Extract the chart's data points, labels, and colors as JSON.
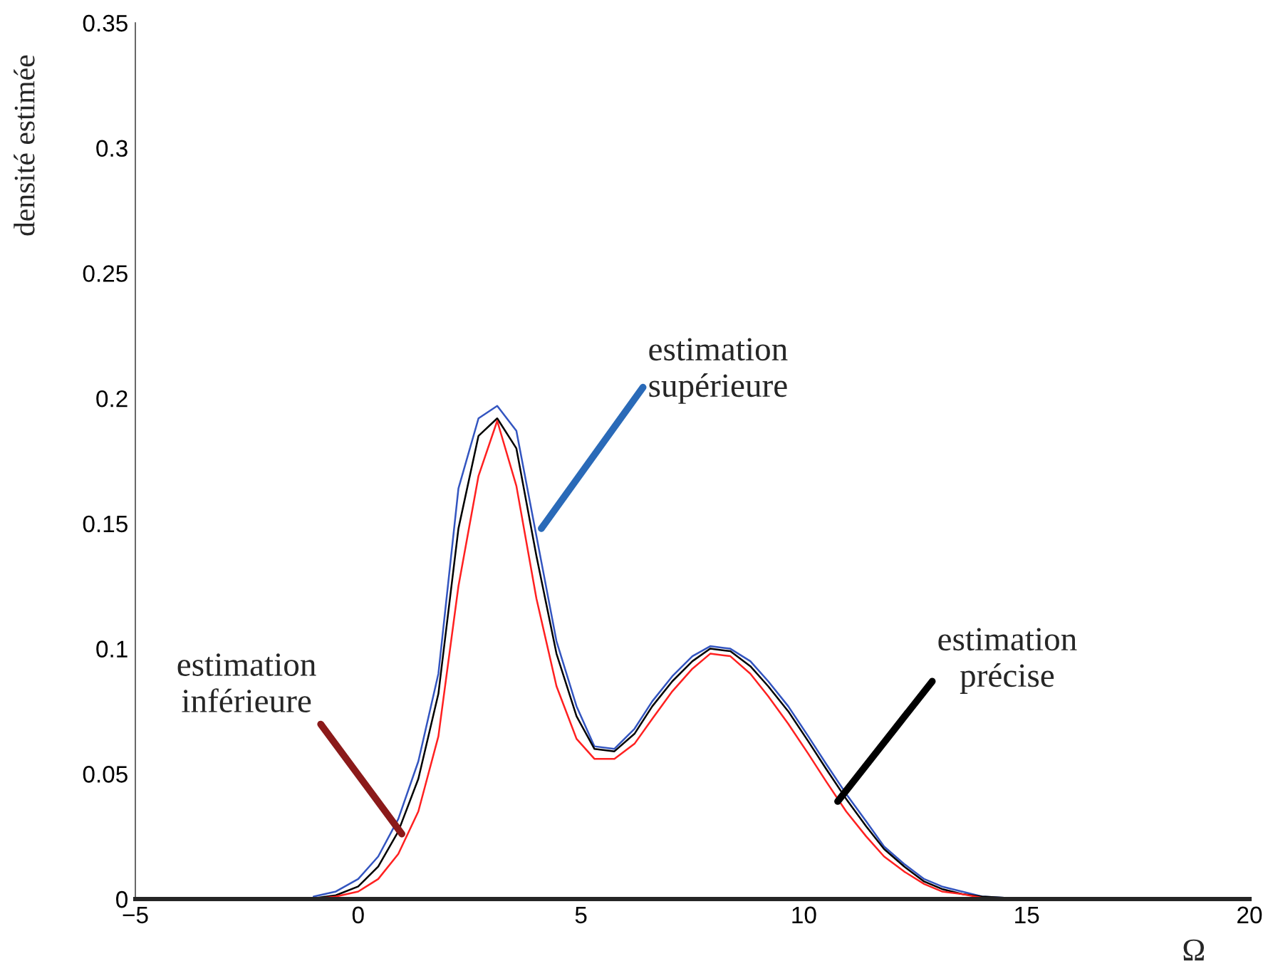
{
  "chart_data": {
    "type": "line",
    "ylabel": "densité estimée",
    "xlabel": "Ω",
    "x": [
      -1.0,
      -0.5,
      0,
      0.45,
      0.9,
      1.35,
      1.8,
      2.25,
      2.7,
      3.12,
      3.55,
      4.0,
      4.45,
      4.9,
      5.3,
      5.75,
      6.2,
      6.6,
      7.05,
      7.5,
      7.9,
      8.35,
      8.8,
      9.2,
      9.65,
      10.1,
      10.5,
      10.95,
      11.4,
      11.8,
      12.25,
      12.7,
      13.1,
      13.55,
      14,
      15
    ],
    "series": [
      {
        "color": "#3355c0",
        "values": [
          0.001,
          0.003,
          0.008,
          0.017,
          0.032,
          0.055,
          0.09,
          0.164,
          0.192,
          0.197,
          0.187,
          0.145,
          0.103,
          0.077,
          0.061,
          0.06,
          0.068,
          0.079,
          0.089,
          0.097,
          0.101,
          0.1,
          0.095,
          0.087,
          0.077,
          0.065,
          0.054,
          0.042,
          0.031,
          0.021,
          0.014,
          0.008,
          0.005,
          0.003,
          0.001,
          0
        ]
      },
      {
        "color": "#000000",
        "values": [
          0.0003,
          0.0015,
          0.005,
          0.013,
          0.027,
          0.048,
          0.082,
          0.148,
          0.185,
          0.192,
          0.18,
          0.137,
          0.098,
          0.073,
          0.06,
          0.059,
          0.066,
          0.077,
          0.087,
          0.095,
          0.1,
          0.099,
          0.093,
          0.085,
          0.075,
          0.063,
          0.052,
          0.04,
          0.029,
          0.02,
          0.013,
          0.007,
          0.004,
          0.002,
          0.001,
          0
        ]
      },
      {
        "color": "#ff2020",
        "values": [
          0,
          0.001,
          0.003,
          0.008,
          0.018,
          0.035,
          0.065,
          0.125,
          0.169,
          0.191,
          0.165,
          0.12,
          0.085,
          0.064,
          0.056,
          0.056,
          0.062,
          0.072,
          0.083,
          0.092,
          0.098,
          0.097,
          0.09,
          0.081,
          0.07,
          0.058,
          0.047,
          0.035,
          0.025,
          0.017,
          0.011,
          0.006,
          0.003,
          0.002,
          0.0005,
          0
        ]
      }
    ],
    "xlim": [
      -5,
      20
    ],
    "xticks": [
      {
        "value": -5,
        "label": "−5"
      },
      0,
      5,
      10,
      15,
      20
    ],
    "ylim": [
      0,
      0.35
    ],
    "yticks": [
      0,
      0.05,
      {
        "value": 0.1,
        "label": "0.1"
      },
      0.15,
      {
        "value": 0.2,
        "label": "0.2"
      },
      0.25,
      {
        "value": 0.3,
        "label": "0.3"
      },
      0.35
    ],
    "grid": false,
    "legend": false,
    "annotations": [
      {
        "text": "estimation\nsupérieure",
        "x": 4.11,
        "y": 0.148
      },
      {
        "text": "estimation\ninférieure",
        "x": 0.98,
        "y": 0.026
      },
      {
        "text": "estimation\nprécise",
        "x": 10.76,
        "y": 0.039
      }
    ]
  }
}
